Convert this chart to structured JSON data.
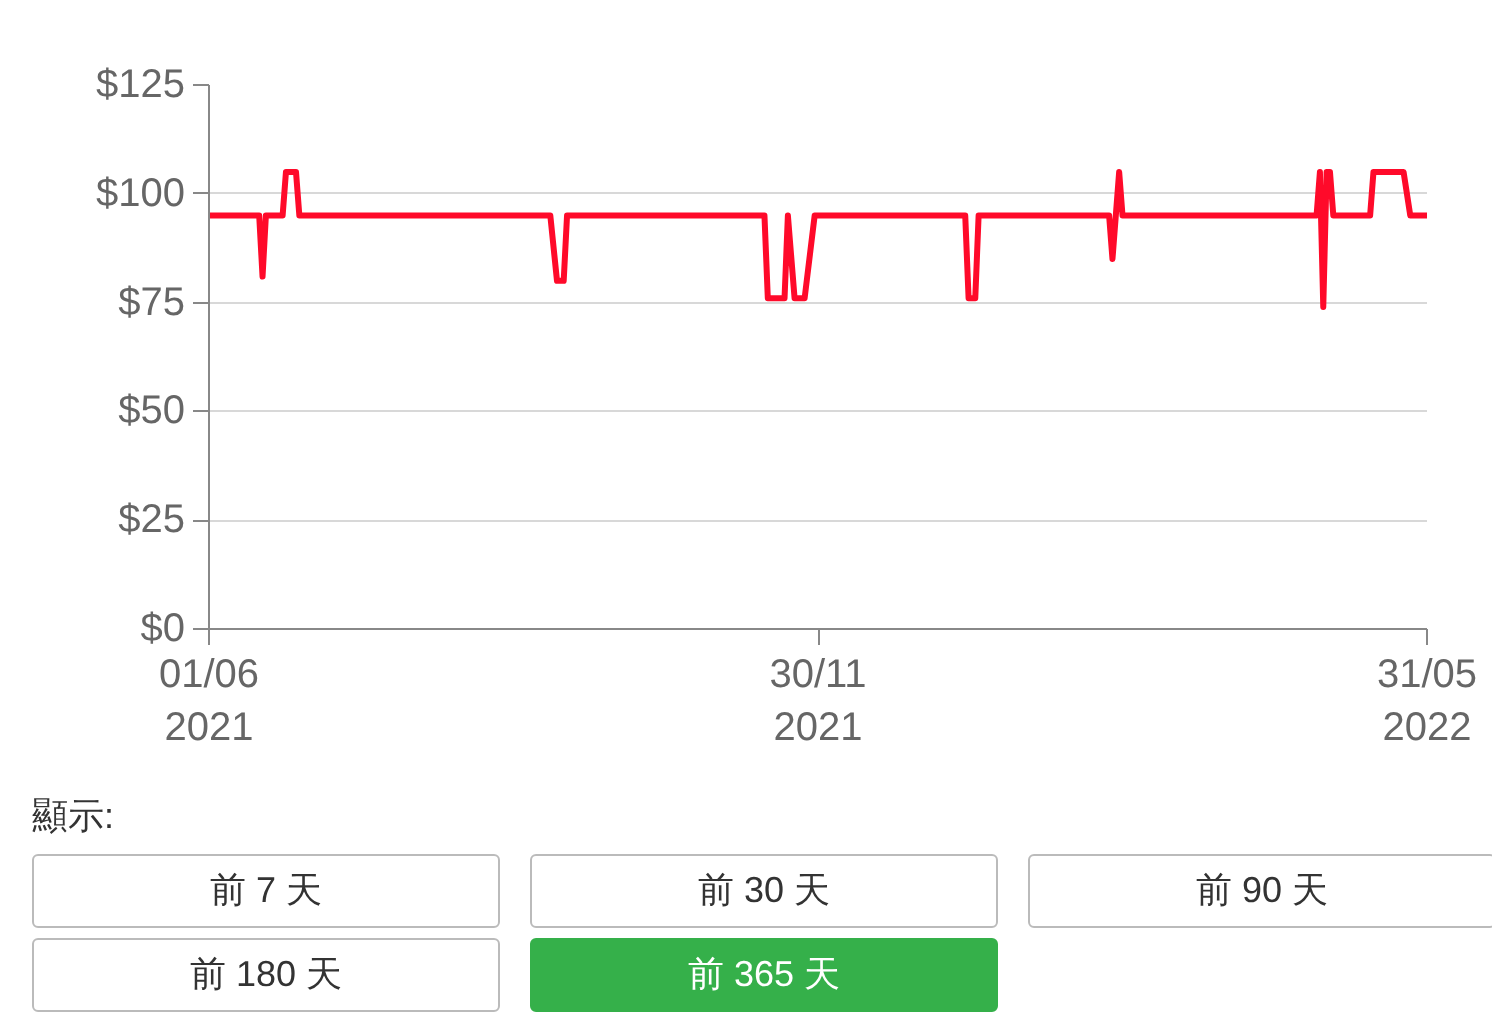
{
  "chart_data": {
    "type": "line",
    "x": [
      "2021-06-01",
      "2021-06-16",
      "2021-06-17",
      "2021-06-18",
      "2021-06-23",
      "2021-06-24",
      "2021-06-27",
      "2021-06-28",
      "2021-09-11",
      "2021-09-13",
      "2021-09-15",
      "2021-09-16",
      "2021-11-14",
      "2021-11-15",
      "2021-11-20",
      "2021-11-21",
      "2021-11-23",
      "2021-11-26",
      "2021-11-29",
      "2022-01-13",
      "2022-01-14",
      "2022-01-16",
      "2022-01-17",
      "2022-02-25",
      "2022-02-26",
      "2022-02-28",
      "2022-03-01",
      "2022-04-28",
      "2022-04-29",
      "2022-04-30",
      "2022-05-01",
      "2022-05-02",
      "2022-05-03",
      "2022-05-14",
      "2022-05-15",
      "2022-05-24",
      "2022-05-26",
      "2022-05-31"
    ],
    "series": [
      {
        "color": "#ff0a2a",
        "values": [
          95,
          95,
          81,
          95,
          95,
          105,
          105,
          95,
          95,
          80,
          80,
          95,
          95,
          76,
          76,
          95,
          76,
          76,
          95,
          95,
          76,
          76,
          95,
          95,
          85,
          105,
          95,
          95,
          105,
          74,
          105,
          105,
          95,
          95,
          105,
          105,
          95,
          95
        ]
      }
    ],
    "xlim": [
      "2021-06-01",
      "2022-05-31"
    ],
    "xticks": [
      {
        "value": "2021-06-01",
        "label": "01/06\n2021"
      },
      {
        "value": "2021-11-30",
        "label": "30/11\n2021"
      },
      {
        "value": "2022-05-31",
        "label": "31/05\n2022"
      }
    ],
    "ylim": [
      0,
      125
    ],
    "yticks": [
      {
        "value": 0,
        "label": "$0"
      },
      {
        "value": 25,
        "label": "$25"
      },
      {
        "value": 50,
        "label": "$50"
      },
      {
        "value": 75,
        "label": "$75"
      },
      {
        "value": 100,
        "label": "$100"
      },
      {
        "value": 125,
        "label": "$125"
      }
    ],
    "grid": "y",
    "marker": "none",
    "line_style": "solid",
    "annotations": [
      "顯示:",
      "前 7 天",
      "前 30 天",
      "前 90 天",
      "前 180 天",
      "前 365 天"
    ]
  }
}
